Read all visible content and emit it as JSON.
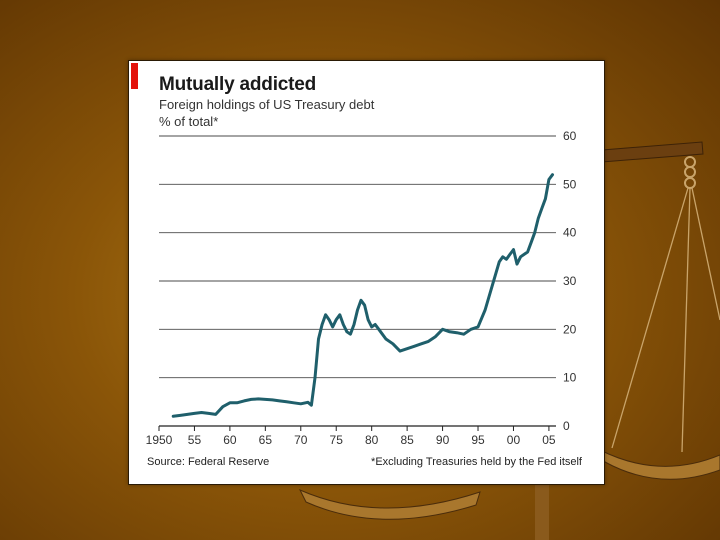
{
  "chart_data": {
    "type": "line",
    "title": "Mutually addicted",
    "subtitle": "Foreign holdings of US Treasury debt",
    "ylabel": "% of total*",
    "xlabel": "",
    "x_ticks": [
      1950,
      1955,
      1960,
      1965,
      1970,
      1975,
      1980,
      1985,
      1990,
      1995,
      2000,
      2005
    ],
    "x_tick_labels": [
      "1950",
      "55",
      "60",
      "65",
      "70",
      "75",
      "80",
      "85",
      "90",
      "95",
      "00",
      "05"
    ],
    "y_ticks": [
      0,
      10,
      20,
      30,
      40,
      50,
      60
    ],
    "xlim": [
      1950,
      2006
    ],
    "ylim": [
      0,
      60
    ],
    "grid": true,
    "series": [
      {
        "name": "Foreign holdings",
        "color": "#1f5f6b",
        "x": [
          1952,
          1953,
          1954,
          1955,
          1956,
          1957,
          1958,
          1959,
          1960,
          1961,
          1962,
          1963,
          1964,
          1965,
          1966,
          1967,
          1968,
          1969,
          1970,
          1971,
          1971.5,
          1972,
          1972.5,
          1973,
          1973.5,
          1974,
          1974.5,
          1975,
          1975.5,
          1976,
          1976.5,
          1977,
          1977.5,
          1978,
          1978.5,
          1979,
          1979.5,
          1980,
          1980.5,
          1981,
          1982,
          1983,
          1984,
          1985,
          1986,
          1987,
          1988,
          1989,
          1990,
          1991,
          1992,
          1993,
          1994,
          1995,
          1996,
          1997,
          1998,
          1998.5,
          1999,
          1999.5,
          2000,
          2000.5,
          2001,
          2001.5,
          2002,
          2002.5,
          2003,
          2003.5,
          2004,
          2004.5,
          2005,
          2005.5
        ],
        "values": [
          2,
          2.2,
          2.4,
          2.6,
          2.8,
          2.6,
          2.4,
          4,
          4.8,
          4.8,
          5.2,
          5.5,
          5.6,
          5.5,
          5.4,
          5.2,
          5,
          4.8,
          4.6,
          4.9,
          4.3,
          10,
          18,
          21,
          23,
          22,
          20.5,
          22,
          23,
          21,
          19.5,
          19,
          21,
          24,
          26,
          25,
          22,
          20.5,
          21,
          20,
          18,
          17,
          15.5,
          16,
          16.5,
          17,
          17.5,
          18.5,
          20,
          19.5,
          19.3,
          19,
          20,
          20.5,
          24,
          29,
          34,
          35,
          34.5,
          35.5,
          36.5,
          33.5,
          35,
          35.5,
          36,
          38,
          40,
          43,
          45,
          47,
          51,
          52
        ]
      }
    ]
  },
  "source": "Source: Federal Reserve",
  "footnote": "*Excluding Treasuries held by the Fed itself",
  "colors": {
    "line": "#1f5f6b",
    "accent": "#e3120b",
    "grid": "#4a4a4a"
  }
}
